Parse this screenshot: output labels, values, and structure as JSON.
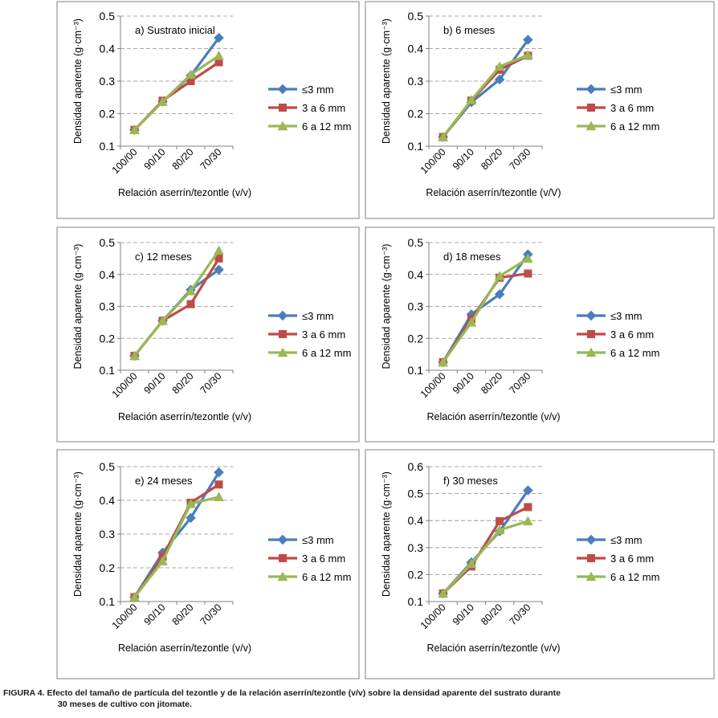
{
  "caption": {
    "line1": "FIGURA 4. Efecto del tamaño de partícula del tezontle y de la relación aserrín/tezontle (v/v) sobre la densidad aparente del sustrato durante",
    "line2": "30 meses de cultivo con jitomate."
  },
  "colors": {
    "series1": "#4A7EBB",
    "series2": "#BE4B48",
    "series3": "#98B954",
    "grid": "#8c8c8c",
    "frame": "#808080"
  },
  "chart_data": [
    {
      "type": "line",
      "title": "a) Sustrato inicial",
      "categories": [
        "100/00",
        "90/10",
        "80/20",
        "70/30"
      ],
      "ylabel": "Densidad aparente (g·cm⁻³)",
      "xlabel": "Relación aserrín/tezontle (v/v)",
      "ylim": [
        0.1,
        0.5
      ],
      "yticks": [
        "0.1",
        "0.2",
        "0.3",
        "0.4",
        "0.5"
      ],
      "series": [
        {
          "name": "≤3 mm",
          "values": [
            0.15,
            0.237,
            0.317,
            0.433
          ]
        },
        {
          "name": "3 a 6 mm",
          "values": [
            0.15,
            0.24,
            0.3,
            0.358
          ]
        },
        {
          "name": "6 a 12 mm",
          "values": [
            0.15,
            0.237,
            0.32,
            0.378
          ]
        }
      ]
    },
    {
      "type": "line",
      "title": "b) 6 meses",
      "categories": [
        "100/00",
        "90/10",
        "80/20",
        "70/30"
      ],
      "ylabel": "Densidad aparente (g·cm⁻³)",
      "xlabel": "Relación aserrín/tezontle (v/V)",
      "ylim": [
        0.1,
        0.5
      ],
      "yticks": [
        "0.1",
        "0.2",
        "0.3",
        "0.4",
        "0.5"
      ],
      "series": [
        {
          "name": "≤3 mm",
          "values": [
            0.128,
            0.235,
            0.305,
            0.427
          ]
        },
        {
          "name": "3 a 6 mm",
          "values": [
            0.128,
            0.24,
            0.335,
            0.378
          ]
        },
        {
          "name": "6 a 12 mm",
          "values": [
            0.128,
            0.242,
            0.345,
            0.38
          ]
        }
      ]
    },
    {
      "type": "line",
      "title": "c) 12 meses",
      "categories": [
        "100/00",
        "90/10",
        "80/20",
        "70/30"
      ],
      "ylabel": "Densidad aparente (g·cm⁻³)",
      "xlabel": "Relación aserrín/tezontle (v/v)",
      "ylim": [
        0.1,
        0.5
      ],
      "yticks": [
        "0.1",
        "0.2",
        "0.3",
        "0.4",
        "0.5"
      ],
      "series": [
        {
          "name": "≤3 mm",
          "values": [
            0.145,
            0.255,
            0.352,
            0.415
          ]
        },
        {
          "name": "3 a 6 mm",
          "values": [
            0.145,
            0.255,
            0.307,
            0.45
          ]
        },
        {
          "name": "6 a 12 mm",
          "values": [
            0.145,
            0.255,
            0.348,
            0.475
          ]
        }
      ]
    },
    {
      "type": "line",
      "title": "d) 18 meses",
      "categories": [
        "100/00",
        "90/10",
        "80/20",
        "70/30"
      ],
      "ylabel": "Densidad aparente (g·cm⁻³)",
      "xlabel": "Relación aserrín/tezontle (v/v)",
      "ylim": [
        0.1,
        0.5
      ],
      "yticks": [
        "0.1",
        "0.2",
        "0.3",
        "0.4",
        "0.5"
      ],
      "series": [
        {
          "name": "≤3 mm",
          "values": [
            0.125,
            0.275,
            0.338,
            0.463
          ]
        },
        {
          "name": "3 a 6 mm",
          "values": [
            0.125,
            0.26,
            0.39,
            0.403
          ]
        },
        {
          "name": "6 a 12 mm",
          "values": [
            0.125,
            0.25,
            0.395,
            0.45
          ]
        }
      ]
    },
    {
      "type": "line",
      "title": "e) 24 meses",
      "categories": [
        "100/00",
        "90/10",
        "80/20",
        "70/30"
      ],
      "ylabel": "Densidad aparente (g·cm⁻³)",
      "xlabel": "Relación aserrín/tezontle (v/v)",
      "ylim": [
        0.1,
        0.5
      ],
      "yticks": [
        "0.1",
        "0.2",
        "0.3",
        "0.4",
        "0.5"
      ],
      "series": [
        {
          "name": "≤3 mm",
          "values": [
            0.113,
            0.245,
            0.348,
            0.483
          ]
        },
        {
          "name": "3 a 6 mm",
          "values": [
            0.113,
            0.233,
            0.393,
            0.447
          ]
        },
        {
          "name": "6 a 12 mm",
          "values": [
            0.113,
            0.22,
            0.39,
            0.41
          ]
        }
      ]
    },
    {
      "type": "line",
      "title": "f) 30 meses",
      "categories": [
        "100/00",
        "90/10",
        "80/20",
        "70/30"
      ],
      "ylabel": "Densidad aparente (g·cm⁻³)",
      "xlabel": "Relación aserrín/tezontle (v/v)",
      "ylim": [
        0.1,
        0.6
      ],
      "yticks": [
        "0.1",
        "0.2",
        "0.3",
        "0.4",
        "0.5",
        "0.6"
      ],
      "series": [
        {
          "name": "≤3 mm",
          "values": [
            0.13,
            0.245,
            0.36,
            0.512
          ]
        },
        {
          "name": "3 a 6 mm",
          "values": [
            0.13,
            0.23,
            0.398,
            0.45
          ]
        },
        {
          "name": "6 a 12 mm",
          "values": [
            0.13,
            0.24,
            0.365,
            0.398
          ]
        }
      ]
    }
  ]
}
